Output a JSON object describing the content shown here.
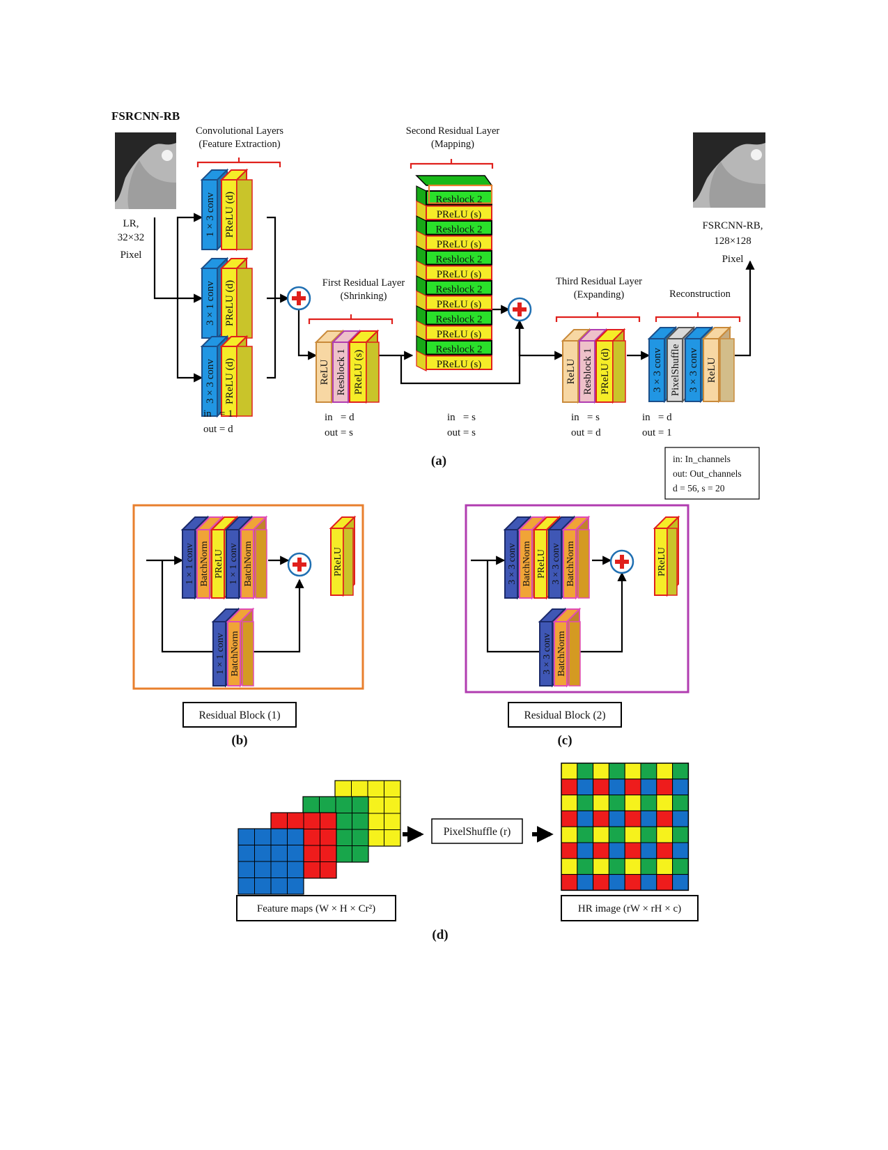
{
  "title": "FSRCNN-RB",
  "colors": {
    "conv": "#2196e3",
    "conv_dark": "#3f57b5",
    "prelu": "#f5ec28",
    "prelu_side": "#c9c42a",
    "batchnorm": "#f0a437",
    "relu": "#f7d7a3",
    "resblock1": "#eec1c9",
    "resblock2": "#2ae02a",
    "shuffle": "#d9d9d9",
    "bracket": "#e0201c",
    "orange_box": "#e87f2d",
    "magenta_box": "#b13cb0",
    "grid_blue": "#1670c8",
    "grid_red": "#ee1c1c",
    "grid_green": "#18a64b",
    "grid_yellow": "#f6f21c"
  },
  "panel_a": {
    "lr": [
      "LR,",
      "32×32",
      "Pixel"
    ],
    "hr": [
      "FSRCNN-RB,",
      "128×128",
      "Pixel"
    ],
    "conv_title": [
      "Convolutional Layers",
      "(Feature Extraction)"
    ],
    "first_title": [
      "First Residual Layer",
      "(Shrinking)"
    ],
    "second_title": [
      "Second Residual Layer",
      "(Mapping)"
    ],
    "third_title": [
      "Third Residual Layer",
      "(Expanding)"
    ],
    "recon_title": "Reconstruction",
    "conv_branches": [
      {
        "conv": "1 × 3 conv",
        "act": "PReLU (d)"
      },
      {
        "conv": "3 × 1 conv",
        "act": "PReLU (d)"
      },
      {
        "conv": "3 × 3 conv",
        "act": "PReLU (d)"
      }
    ],
    "first_layers": [
      "ReLU",
      "Resblock 1",
      "PReLU (s)"
    ],
    "stack_labels": [
      "Resblock 2",
      "PReLU (s)",
      "Resblock 2",
      "PReLU (s)",
      "Resblock 2",
      "PReLU (s)",
      "Resblock 2",
      "PReLU (s)",
      "Resblock 2",
      "PReLU (s)",
      "Resblock 2",
      "PReLU (s)"
    ],
    "third_layers": [
      "ReLU",
      "Resblock 1",
      "PReLU (d)"
    ],
    "recon_layers": [
      "3 × 3 conv",
      "PixelShuffle",
      "3 × 3 conv",
      "ReLU"
    ],
    "io": [
      [
        "in   = 1",
        "out = d"
      ],
      [
        "in   = d",
        "out = s"
      ],
      [
        "in   = s",
        "out = s"
      ],
      [
        "in   = s",
        "out = d"
      ],
      [
        "in   = d",
        "out = 1"
      ]
    ],
    "legend": [
      "in: In_channels",
      "out: Out_channels",
      "d = 56, s = 20"
    ],
    "caption": "(a)"
  },
  "panel_b": {
    "main": [
      "1 × 1 conv",
      "BatchNorm",
      "PReLU",
      "1 × 1 conv",
      "BatchNorm"
    ],
    "shortcut": [
      "1 × 1 conv",
      "BatchNorm"
    ],
    "out": "PReLU",
    "label": "Residual Block (1)",
    "caption": "(b)"
  },
  "panel_c": {
    "main": [
      "3 × 3 conv",
      "BatchNorm",
      "PReLU",
      "3 × 3 conv",
      "BatchNorm"
    ],
    "shortcut": [
      "3 × 3 conv",
      "BatchNorm"
    ],
    "out": "PReLU",
    "label": "Residual Block (2)",
    "caption": "(c)"
  },
  "panel_d": {
    "feature_label": "Feature maps (W × H × Cr²)",
    "shuffle_label": "PixelShuffle (r)",
    "hr_label": "HR image (rW × rH × c)",
    "caption": "(d)"
  }
}
